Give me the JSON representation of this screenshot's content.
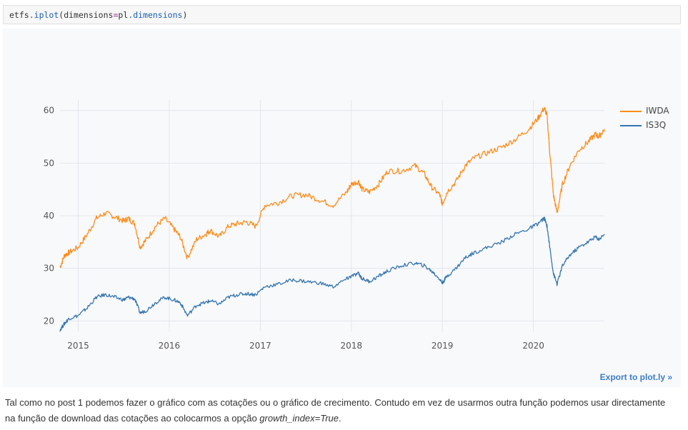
{
  "code": {
    "object": "etfs",
    "method": "iplot",
    "argument": "dimensions",
    "value_prefix": "pl",
    "value_attr": "dimensions"
  },
  "chart_data": {
    "type": "line",
    "x_ticks": [
      "2015",
      "2016",
      "2017",
      "2018",
      "2019",
      "2020"
    ],
    "y_ticks": [
      "20",
      "30",
      "40",
      "50",
      "60"
    ],
    "ylim": [
      18,
      62
    ],
    "xlim": [
      2014.8,
      2020.78
    ],
    "x": [
      2014.8,
      2014.85,
      2014.9,
      2015.0,
      2015.1,
      2015.2,
      2015.3,
      2015.4,
      2015.5,
      2015.55,
      2015.62,
      2015.68,
      2015.75,
      2015.85,
      2015.95,
      2016.05,
      2016.12,
      2016.2,
      2016.3,
      2016.4,
      2016.45,
      2016.55,
      2016.65,
      2016.75,
      2016.85,
      2016.95,
      2017.05,
      2017.2,
      2017.35,
      2017.5,
      2017.65,
      2017.8,
      2017.95,
      2018.0,
      2018.08,
      2018.12,
      2018.2,
      2018.3,
      2018.4,
      2018.55,
      2018.7,
      2018.8,
      2018.88,
      2018.97,
      2019.0,
      2019.05,
      2019.15,
      2019.25,
      2019.35,
      2019.5,
      2019.65,
      2019.8,
      2019.95,
      2020.05,
      2020.12,
      2020.15,
      2020.18,
      2020.22,
      2020.26,
      2020.32,
      2020.4,
      2020.5,
      2020.6,
      2020.68,
      2020.72,
      2020.78
    ],
    "series": [
      {
        "name": "IWDA",
        "color": "#ff8c1a",
        "values": [
          30.2,
          32.5,
          33.0,
          34.0,
          36.5,
          39.5,
          40.5,
          39.8,
          39.0,
          39.5,
          38.5,
          34.0,
          35.5,
          38.0,
          39.5,
          37.5,
          36.0,
          32.0,
          35.5,
          36.5,
          37.2,
          36.0,
          38.0,
          38.5,
          38.8,
          38.0,
          42.0,
          42.5,
          43.8,
          44.0,
          43.0,
          42.0,
          44.5,
          46.0,
          46.5,
          45.0,
          44.5,
          46.0,
          48.5,
          48.5,
          49.5,
          48.0,
          45.5,
          44.0,
          42.2,
          44.5,
          46.5,
          49.5,
          51.0,
          52.0,
          53.0,
          54.5,
          56.5,
          58.5,
          60.5,
          59.0,
          52.0,
          44.0,
          40.5,
          46.0,
          49.5,
          52.5,
          54.0,
          55.5,
          55.0,
          56.5
        ]
      },
      {
        "name": "IS3Q",
        "color": "#3575b0",
        "values": [
          18.3,
          19.5,
          20.5,
          21.0,
          22.5,
          24.5,
          25.0,
          24.5,
          24.0,
          24.5,
          24.2,
          21.5,
          22.0,
          23.5,
          24.5,
          24.0,
          23.5,
          21.0,
          23.0,
          23.5,
          23.8,
          23.2,
          24.5,
          25.0,
          25.2,
          25.0,
          26.5,
          27.0,
          27.8,
          27.5,
          27.2,
          26.5,
          28.0,
          28.5,
          29.0,
          28.0,
          27.5,
          28.5,
          29.5,
          30.5,
          31.0,
          30.5,
          29.5,
          28.0,
          27.2,
          28.5,
          30.0,
          32.0,
          33.0,
          34.0,
          35.0,
          36.5,
          37.5,
          38.5,
          39.5,
          38.0,
          34.0,
          29.0,
          27.0,
          30.5,
          32.5,
          34.0,
          35.0,
          36.0,
          35.5,
          36.5
        ]
      }
    ],
    "legend_position": "top-right",
    "grid": true
  },
  "export_label": "Export to plot.ly »",
  "caption": {
    "text": "Tal como no post 1 podemos fazer o gráfico com as cotações ou o gráfico de crecimento. Contudo em vez de usarmos outra função podemos usar directamente na função de download das cotações ao colocarmos a opção ",
    "emphasis": "growth_index=True",
    "end": "."
  }
}
